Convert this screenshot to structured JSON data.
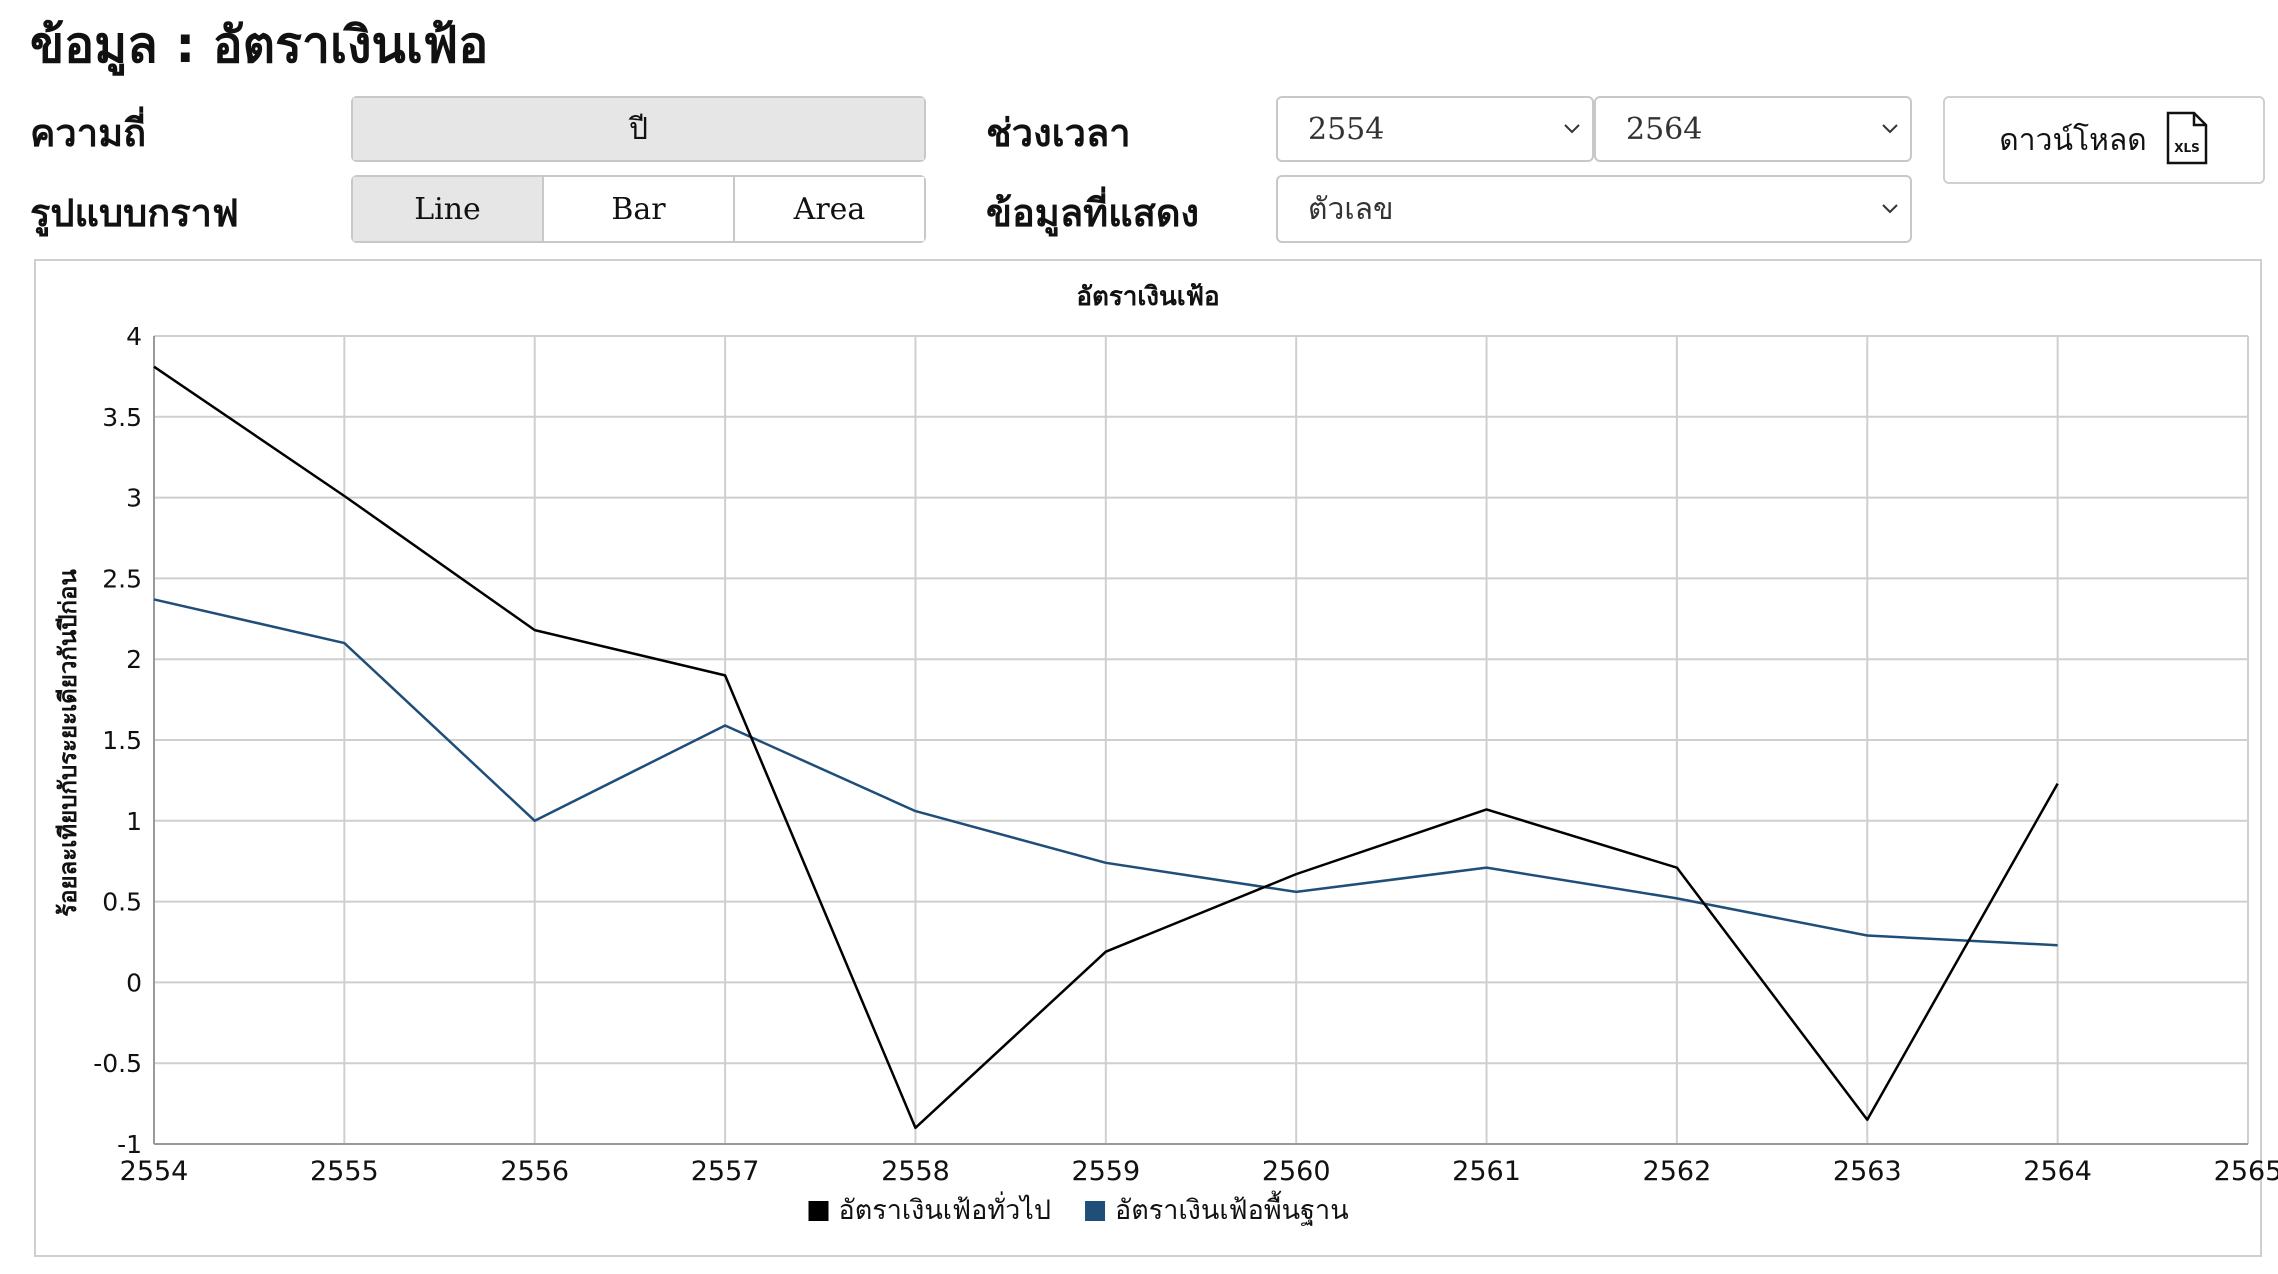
{
  "header": {
    "title": "ข้อมูล : อัตราเงินเฟ้อ"
  },
  "controls": {
    "frequency_label": "ความถี่",
    "frequency_options": [
      "ปี"
    ],
    "chart_type_label": "รูปแบบกราฟ",
    "chart_type_options": [
      "Line",
      "Bar",
      "Area"
    ],
    "chart_type_selected": "Line",
    "period_label": "ช่วงเวลา",
    "period_start": "2554",
    "period_end": "2564",
    "display_label": "ข้อมูลที่แสดง",
    "display_value": "ตัวเลข",
    "download_label": "ดาวน์โหลด",
    "download_icon_text": "XLS"
  },
  "chart_data": {
    "type": "line",
    "title": "อัตราเงินเฟ้อ",
    "xlabel": "",
    "ylabel": "ร้อยละเทียบกับระยะเดียวกันปีก่อน",
    "x": [
      2554,
      2555,
      2556,
      2557,
      2558,
      2559,
      2560,
      2561,
      2562,
      2563,
      2564
    ],
    "xticks": [
      "2554",
      "2555",
      "2556",
      "2557",
      "2558",
      "2559",
      "2560",
      "2561",
      "2562",
      "2563",
      "2564",
      "2565"
    ],
    "xlim": [
      2554,
      2565
    ],
    "yticks": [
      "4",
      "3.5",
      "3",
      "2.5",
      "2",
      "1.5",
      "1",
      "0.5",
      "0",
      "-0.5",
      "-1"
    ],
    "ylim": [
      -1,
      4
    ],
    "grid": true,
    "legend_position": "bottom",
    "series": [
      {
        "name": "อัตราเงินเฟ้อทั่วไป",
        "color": "#000000",
        "values": [
          3.81,
          3.01,
          2.18,
          1.9,
          -0.9,
          0.19,
          0.67,
          1.07,
          0.71,
          -0.85,
          1.23
        ]
      },
      {
        "name": "อัตราเงินเฟ้อพื้นฐาน",
        "color": "#1f4e79",
        "values": [
          2.37,
          2.1,
          1.0,
          1.59,
          1.06,
          0.74,
          0.56,
          0.71,
          0.52,
          0.29,
          0.23
        ]
      }
    ]
  }
}
